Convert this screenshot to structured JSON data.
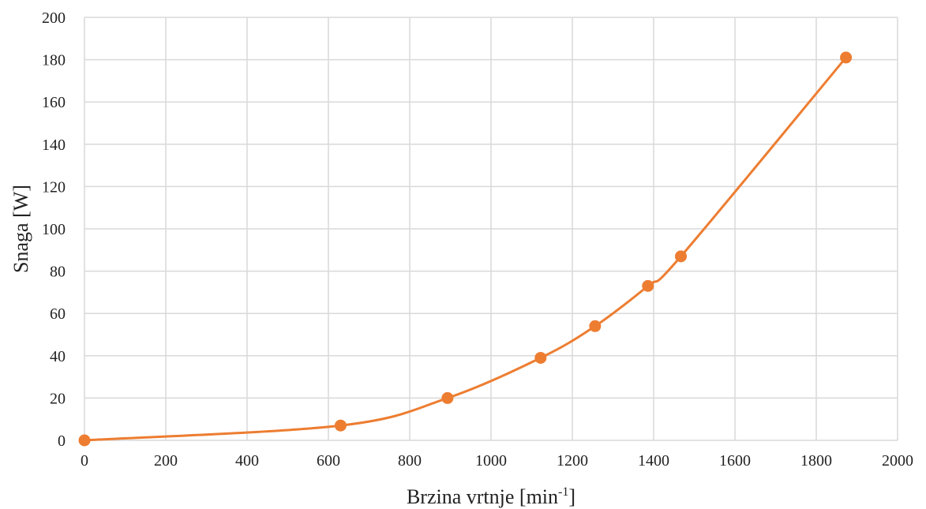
{
  "chart_data": {
    "type": "line",
    "title": "",
    "xlabel_main": "Brzina vrtnje [min",
    "xlabel_sup": "-1",
    "xlabel_end": "]",
    "ylabel": "Snaga [W]",
    "xlim": [
      0,
      2000
    ],
    "ylim": [
      0,
      200
    ],
    "x_ticks": [
      "0",
      "200",
      "400",
      "600",
      "800",
      "1000",
      "1200",
      "1400",
      "1600",
      "1800",
      "2000"
    ],
    "y_ticks": [
      "0",
      "20",
      "40",
      "60",
      "80",
      "100",
      "120",
      "140",
      "160",
      "180",
      "200"
    ],
    "grid": true,
    "smooth": true,
    "series_color": "#ED7D31",
    "series": [
      {
        "x": [
          0,
          630,
          893,
          1122,
          1256,
          1386,
          1467,
          1873
        ],
        "y": [
          0,
          7,
          20,
          39,
          54,
          73,
          87,
          181
        ]
      }
    ]
  }
}
